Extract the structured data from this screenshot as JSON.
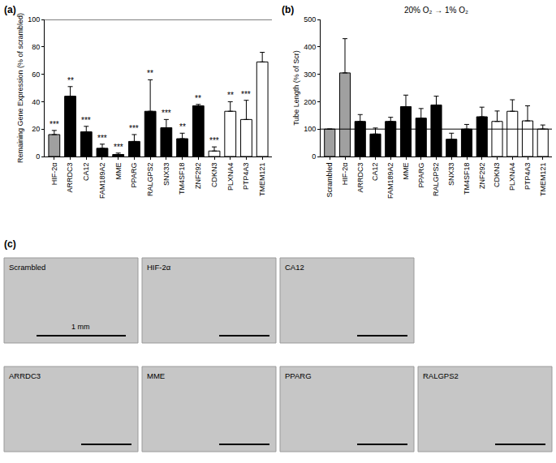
{
  "chart_data": [
    {
      "type": "bar",
      "panel": "(a)",
      "y_label": "Remaining Gene Expression (% of scrambled)",
      "categories": [
        "HIF-2α",
        "ARRDC3",
        "CA12",
        "FAM189A2",
        "MME",
        "PPARG",
        "RALGPS2",
        "SNX33",
        "TM4SF18",
        "ZNF292",
        "CDKN3",
        "PLXNA4",
        "PTP4A3",
        "TMEM121"
      ],
      "values": [
        16,
        44,
        18,
        6,
        1.5,
        11,
        33,
        21,
        13,
        37,
        4,
        33,
        27,
        69
      ],
      "error": [
        3,
        7,
        4,
        3,
        1,
        5,
        23,
        6,
        4,
        1,
        3,
        7,
        14,
        7
      ],
      "significance": [
        "***",
        "**",
        "***",
        "***",
        "***",
        "***",
        "**",
        "***",
        "**",
        "**",
        "***",
        "**",
        "***",
        null
      ],
      "colors": [
        "#a0a0a0",
        "#000000",
        "#000000",
        "#000000",
        "#000000",
        "#000000",
        "#000000",
        "#000000",
        "#000000",
        "#000000",
        "#ffffff",
        "#ffffff",
        "#ffffff",
        "#ffffff"
      ],
      "reference_line": 100,
      "ylim": [
        0,
        100
      ],
      "yticks": [
        0,
        20,
        40,
        60,
        80,
        100
      ],
      "grid": false
    },
    {
      "type": "bar",
      "panel": "(b)",
      "title": "20% O₂ → 1% O₂",
      "y_label": "Tube Length (% of Scr)",
      "categories": [
        "Scrambled",
        "HIF-2α",
        "ARRDC3",
        "CA12",
        "FAM189A2",
        "MME",
        "PPARG",
        "RALGPS2",
        "SNX33",
        "TM4SF18",
        "ZNF292",
        "CDKN3",
        "PLXNA4",
        "PTP4A3",
        "TMEM121"
      ],
      "values": [
        100,
        305,
        128,
        82,
        128,
        182,
        140,
        188,
        63,
        100,
        145,
        128,
        165,
        130,
        100
      ],
      "error": [
        0,
        125,
        25,
        22,
        15,
        42,
        35,
        32,
        22,
        17,
        35,
        38,
        42,
        55,
        15
      ],
      "colors": [
        "#a0a0a0",
        "#a0a0a0",
        "#000000",
        "#000000",
        "#000000",
        "#000000",
        "#000000",
        "#000000",
        "#000000",
        "#000000",
        "#000000",
        "#ffffff",
        "#ffffff",
        "#ffffff",
        "#ffffff"
      ],
      "reference_line": 100,
      "ylim": [
        0,
        500
      ],
      "yticks": [
        0,
        100,
        200,
        300,
        400,
        500
      ],
      "grid": false
    }
  ],
  "panel_c": {
    "panel": "(c)",
    "images": [
      "Scrambled",
      "HIF-2α",
      "CA12",
      "ARRDC3",
      "MME",
      "PPARG",
      "RALGPS2"
    ],
    "scale_bar": "1 mm"
  }
}
